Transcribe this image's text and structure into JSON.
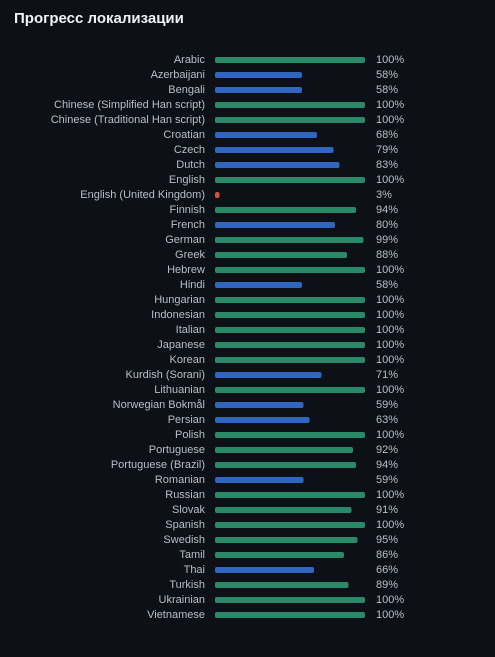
{
  "chart_data": {
    "type": "bar",
    "orientation": "horizontal",
    "title": "Прогресс локализации",
    "categories": [
      "Arabic",
      "Azerbaijani",
      "Bengali",
      "Chinese (Simplified Han script)",
      "Chinese (Traditional Han script)",
      "Croatian",
      "Czech",
      "Dutch",
      "English",
      "English (United Kingdom)",
      "Finnish",
      "French",
      "German",
      "Greek",
      "Hebrew",
      "Hindi",
      "Hungarian",
      "Indonesian",
      "Italian",
      "Japanese",
      "Korean",
      "Kurdish (Sorani)",
      "Lithuanian",
      "Norwegian Bokmål",
      "Persian",
      "Polish",
      "Portuguese",
      "Portuguese (Brazil)",
      "Romanian",
      "Russian",
      "Slovak",
      "Spanish",
      "Swedish",
      "Tamil",
      "Thai",
      "Turkish",
      "Ukrainian",
      "Vietnamese"
    ],
    "values": [
      100,
      58,
      58,
      100,
      100,
      68,
      79,
      83,
      100,
      3,
      94,
      80,
      99,
      88,
      100,
      58,
      100,
      100,
      100,
      100,
      100,
      71,
      100,
      59,
      63,
      100,
      92,
      94,
      59,
      100,
      91,
      100,
      95,
      86,
      66,
      89,
      100,
      100
    ],
    "value_labels": [
      "100%",
      "58%",
      "58%",
      "100%",
      "100%",
      "68%",
      "79%",
      "83%",
      "100%",
      "3%",
      "94%",
      "80%",
      "99%",
      "88%",
      "100%",
      "58%",
      "100%",
      "100%",
      "100%",
      "100%",
      "100%",
      "71%",
      "100%",
      "59%",
      "63%",
      "100%",
      "92%",
      "94%",
      "59%",
      "100%",
      "91%",
      "100%",
      "95%",
      "86%",
      "66%",
      "89%",
      "100%",
      "100%"
    ],
    "colors": [
      "#2a8a68",
      "#2e66c0",
      "#2e66c0",
      "#2a8a68",
      "#2a8a68",
      "#2e66c0",
      "#2e66c0",
      "#2e66c0",
      "#2a8a68",
      "#d0573c",
      "#2a8a68",
      "#2e66c0",
      "#2a8a68",
      "#2a8a68",
      "#2a8a68",
      "#2e66c0",
      "#2a8a68",
      "#2a8a68",
      "#2a8a68",
      "#2a8a68",
      "#2a8a68",
      "#2e66c0",
      "#2a8a68",
      "#2e66c0",
      "#2e66c0",
      "#2a8a68",
      "#2a8a68",
      "#2a8a68",
      "#2e66c0",
      "#2a8a68",
      "#2a8a68",
      "#2a8a68",
      "#2a8a68",
      "#2a8a68",
      "#2e66c0",
      "#2a8a68",
      "#2a8a68",
      "#2a8a68"
    ],
    "xlim": [
      0,
      100
    ]
  }
}
